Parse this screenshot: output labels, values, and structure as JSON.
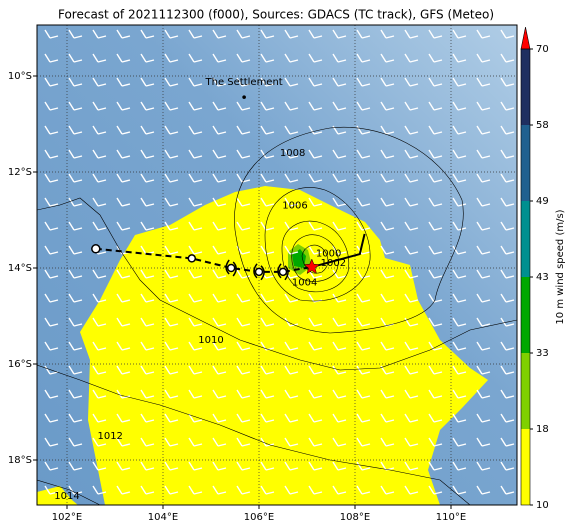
{
  "chart_data": {
    "type": "map",
    "title": "Forecast of 2021112300 (f000), Sources: GDACS (TC track), GFS (Meteo)",
    "xlim": [
      101.375,
      111.375
    ],
    "ylim": [
      -18.9375,
      -8.9375
    ],
    "xticks": [
      {
        "value": 102,
        "label": "102°E"
      },
      {
        "value": 104,
        "label": "104°E"
      },
      {
        "value": 106,
        "label": "106°E"
      },
      {
        "value": 108,
        "label": "108°E"
      },
      {
        "value": 110,
        "label": "110°E"
      }
    ],
    "yticks": [
      {
        "value": -10,
        "label": "10°S"
      },
      {
        "value": -12,
        "label": "12°S"
      },
      {
        "value": -14,
        "label": "14°S"
      },
      {
        "value": -16,
        "label": "16°S"
      },
      {
        "value": -18,
        "label": "18°S"
      }
    ],
    "grid": true,
    "track": {
      "lon": [
        102.6,
        104.6,
        105.42,
        106.0,
        106.5,
        107.1
      ],
      "lat": [
        -13.6,
        -13.8,
        -14.0,
        -14.08,
        -14.08,
        -13.98
      ],
      "color": "#000000"
    },
    "forecast_track": {
      "lon": [
        107.1,
        107.58,
        108.1,
        108.2
      ],
      "lat": [
        -13.98,
        -13.85,
        -13.71,
        -13.29
      ],
      "color": "#000000"
    },
    "current_color": "#ff0000",
    "place": {
      "name": "The Settlement",
      "lon": 105.69,
      "lat": -10.44
    },
    "contour_labels": [
      {
        "level": 1008,
        "lon": 106.7,
        "lat": -11.6
      },
      {
        "level": 1006,
        "lon": 106.75,
        "lat": -12.7
      },
      {
        "level": 1004,
        "lon": 106.95,
        "lat": -14.3
      },
      {
        "level": 1002,
        "lon": 107.55,
        "lat": -13.9
      },
      {
        "level": 1000,
        "lon": 107.45,
        "lat": -13.7
      },
      {
        "level": 1010,
        "lon": 105.0,
        "lat": -15.5
      },
      {
        "level": 1012,
        "lon": 102.9,
        "lat": -17.5
      },
      {
        "level": 1014,
        "lon": 102.0,
        "lat": -18.75
      }
    ],
    "colorbar": {
      "label": "10 m wind speed (m/s)",
      "ticks": [
        10,
        18,
        33,
        43,
        49,
        58,
        70
      ],
      "colors": [
        "#ffff00",
        "#7fd000",
        "#00a800",
        "#009090",
        "#20608f",
        "#1f2f60"
      ],
      "extend_color": "#ff0000"
    }
  }
}
